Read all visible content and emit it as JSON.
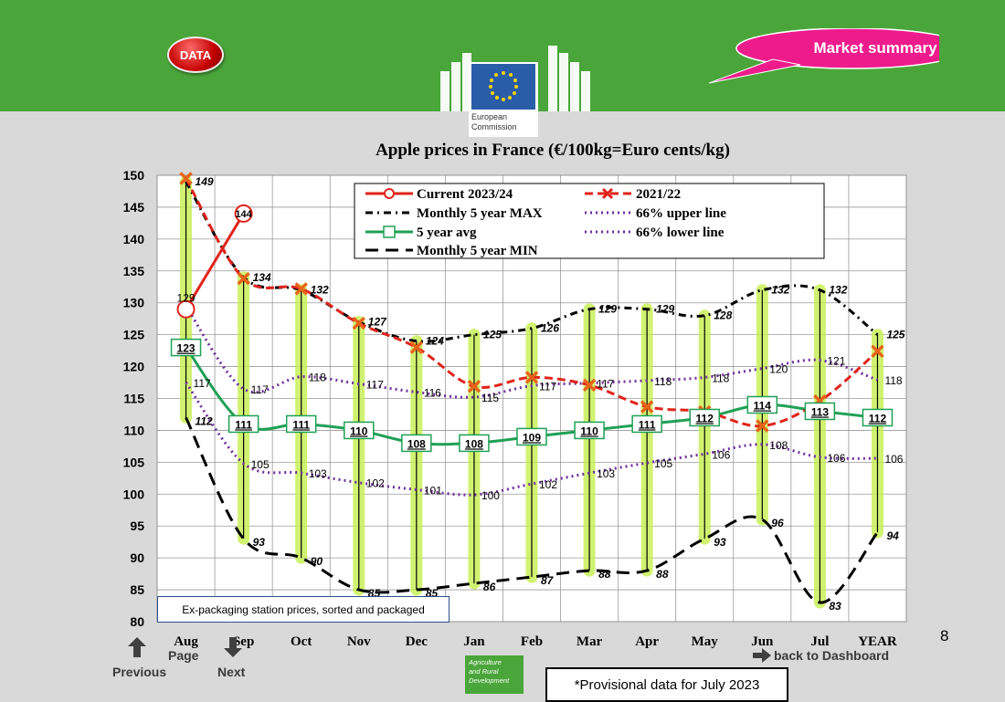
{
  "header": {
    "data_button": "DATA",
    "market_summary": "Market summary",
    "logo_text_line1": "European",
    "logo_text_line2": "Commission"
  },
  "chart_data": {
    "type": "line",
    "title": "Apple prices in France (€/100kg=Euro cents/kg)",
    "categories": [
      "Aug",
      "Sep",
      "Oct",
      "Nov",
      "Dec",
      "Jan",
      "Feb",
      "Mar",
      "Apr",
      "May",
      "Jun",
      "Jul",
      "YEAR"
    ],
    "ylim": [
      80,
      150
    ],
    "yticks": [
      80,
      85,
      90,
      95,
      100,
      105,
      110,
      115,
      120,
      125,
      130,
      135,
      140,
      145,
      150
    ],
    "grid": true,
    "legend_placement": "top",
    "series": [
      {
        "name": "Current 2023/24",
        "color": "#e0241b",
        "marker": "circle-open",
        "values": [
          129,
          144,
          null,
          null,
          null,
          null,
          null,
          null,
          null,
          null,
          null,
          null,
          null
        ],
        "labels": [
          "129",
          "144"
        ]
      },
      {
        "name": "2021/22",
        "color": "#e0241b",
        "marker": "x",
        "values": [
          149.5,
          133.8,
          132.2,
          126.8,
          123,
          116.9,
          118.3,
          117.1,
          113.7,
          112.9,
          110.7,
          114.6,
          122.4
        ]
      },
      {
        "name": "Monthly 5 year MAX",
        "color": "#000000",
        "values": [
          149,
          134,
          132,
          127,
          124,
          125,
          126,
          129,
          129,
          128,
          132,
          132,
          125
        ],
        "labels": [
          "149",
          "134",
          "132",
          "127",
          "124",
          "125",
          "126",
          "129",
          "129",
          "128",
          "132",
          "132",
          "125"
        ]
      },
      {
        "name": "66% upper line",
        "color": "#7030a0",
        "values": [
          129.5,
          116.5,
          118.4,
          117.3,
          116,
          115.2,
          117,
          117.4,
          117.8,
          118.3,
          119.7,
          121,
          117.9
        ],
        "labels": [
          "",
          "117",
          "118",
          "117",
          "116",
          "115",
          "117",
          "117",
          "118",
          "118",
          "120",
          "121",
          "118"
        ]
      },
      {
        "name": "5 year avg",
        "color": "#1fa055",
        "marker": "square-open",
        "values": [
          123,
          111,
          111,
          110,
          108,
          108,
          109,
          110,
          111,
          112,
          114,
          113,
          112
        ],
        "labels": [
          "123",
          "111",
          "111",
          "110",
          "108",
          "108",
          "109",
          "110",
          "111",
          "112",
          "114",
          "113",
          "112"
        ]
      },
      {
        "name": "66% lower line",
        "color": "#7030a0",
        "values": [
          117.5,
          104.8,
          103.3,
          101.8,
          100.7,
          99.9,
          101.6,
          103.3,
          104.9,
          106.3,
          107.8,
          105.8,
          105.6
        ],
        "labels": [
          "117",
          "105",
          "103",
          "102",
          "101",
          "100",
          "102",
          "103",
          "105",
          "106",
          "108",
          "106",
          "106"
        ]
      },
      {
        "name": "Monthly 5 year MIN",
        "color": "#000000",
        "values": [
          112,
          93,
          90,
          85,
          85,
          86,
          87,
          88,
          88,
          93,
          96,
          83,
          94
        ],
        "labels": [
          "112",
          "93",
          "90",
          "85",
          "85",
          "86",
          "87",
          "88",
          "88",
          "93",
          "96",
          "83",
          "94"
        ]
      }
    ]
  },
  "footer": {
    "note": "Ex-packaging station prices, sorted and packaged",
    "page_number": "8",
    "previous": "Previous",
    "page": "Page",
    "next": "Next",
    "dashboard": "back to Dashboard",
    "provisional": "*Provisional data for July 2023",
    "agri_line1": "Agriculture",
    "agri_line2": "and Rural",
    "agri_line3": "Development"
  }
}
